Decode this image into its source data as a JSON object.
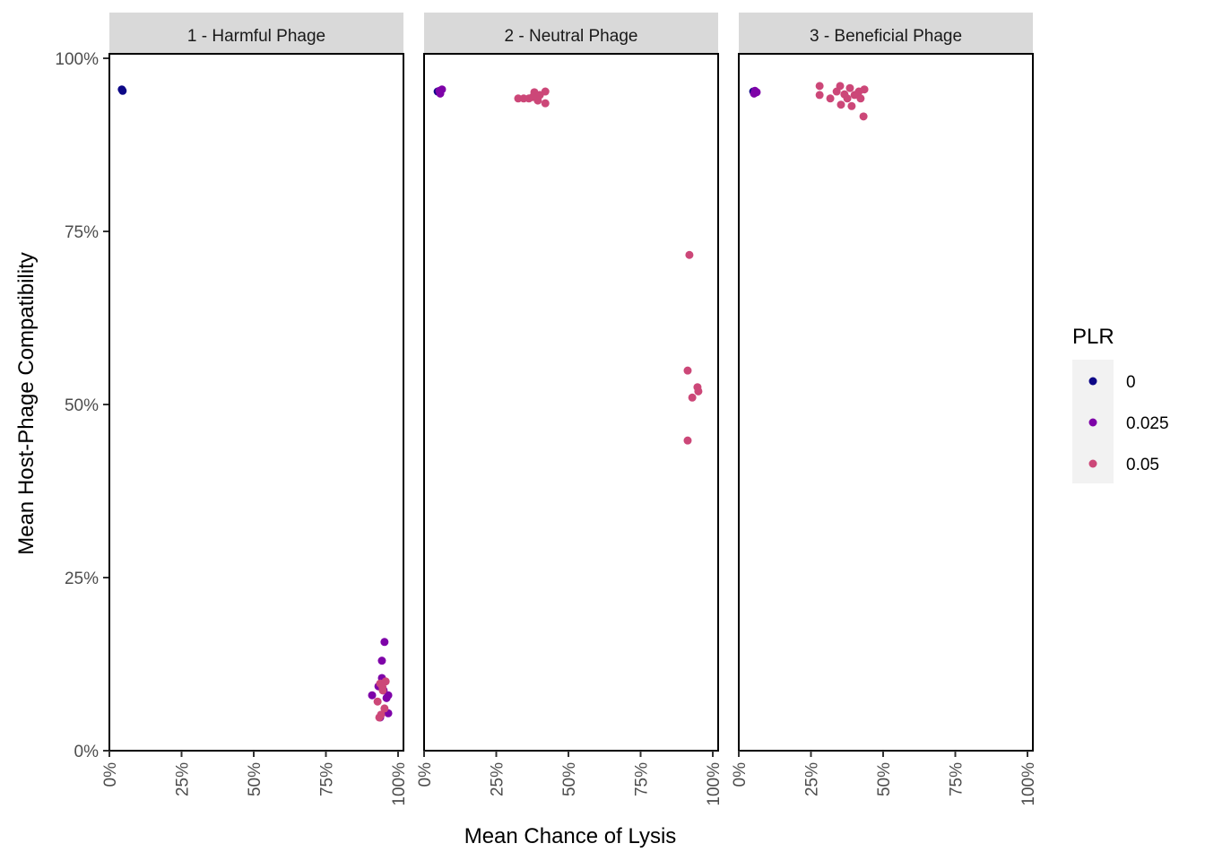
{
  "chart_data": {
    "type": "scatter",
    "title": "",
    "xlabel": "Mean Chance of Lysis",
    "ylabel": "Mean Host-Phage Compatibility",
    "xlim": [
      0,
      100
    ],
    "ylim": [
      0,
      100
    ],
    "x_ticks": [
      "0%",
      "25%",
      "50%",
      "75%",
      "100%"
    ],
    "y_ticks": [
      "0%",
      "25%",
      "50%",
      "75%",
      "100%"
    ],
    "x_tick_values": [
      0,
      25,
      50,
      75,
      100
    ],
    "y_tick_values": [
      0,
      25,
      50,
      75,
      100
    ],
    "grid": false,
    "legend": {
      "title": "PLR",
      "placement": "right",
      "entries": [
        {
          "label": "0",
          "color": "#0d0887"
        },
        {
          "label": "0.025",
          "color": "#7e03a8"
        },
        {
          "label": "0.05",
          "color": "#cc4778"
        }
      ]
    },
    "panels": [
      {
        "label": "1 - Harmful Phage",
        "series": [
          {
            "name": "0",
            "points": [
              [
                4.3,
                95.5
              ],
              [
                4.6,
                95.3
              ]
            ]
          },
          {
            "name": "0.025",
            "points": [
              [
                95.3,
                15.7
              ],
              [
                94.4,
                13.0
              ],
              [
                94.4,
                10.5
              ],
              [
                91.0,
                8.0
              ],
              [
                96.6,
                8.0
              ],
              [
                93.2,
                9.3
              ],
              [
                96.6,
                5.4
              ],
              [
                93.8,
                4.8
              ],
              [
                95.0,
                8.7
              ],
              [
                96.0,
                7.6
              ]
            ]
          },
          {
            "name": "0.05",
            "points": [
              [
                93.8,
                9.7
              ],
              [
                95.7,
                10.0
              ],
              [
                94.7,
                8.7
              ],
              [
                92.9,
                7.1
              ],
              [
                94.1,
                5.2
              ],
              [
                95.3,
                6.1
              ],
              [
                93.5,
                4.8
              ],
              [
                94.6,
                9.2
              ]
            ]
          }
        ]
      },
      {
        "label": "2 - Neutral Phage",
        "series": [
          {
            "name": "0",
            "points": [
              [
                4.7,
                95.2
              ]
            ]
          },
          {
            "name": "0.025",
            "points": [
              [
                5.3,
                95.3
              ],
              [
                6.2,
                95.5
              ],
              [
                5.6,
                94.9
              ]
            ]
          },
          {
            "name": "0.05",
            "points": [
              [
                32.6,
                94.2
              ],
              [
                34.5,
                94.2
              ],
              [
                36.3,
                94.2
              ],
              [
                38.2,
                95.1
              ],
              [
                40.1,
                94.7
              ],
              [
                42.0,
                95.2
              ],
              [
                42.0,
                93.5
              ],
              [
                39.4,
                93.9
              ],
              [
                37.6,
                94.4
              ],
              [
                91.9,
                71.6
              ],
              [
                91.3,
                54.9
              ],
              [
                94.7,
                52.5
              ],
              [
                95.0,
                51.9
              ],
              [
                92.9,
                51.0
              ],
              [
                91.3,
                44.8
              ]
            ]
          }
        ]
      },
      {
        "label": "3 - Beneficial Phage",
        "series": [
          {
            "name": "0",
            "points": [
              [
                5.0,
                95.2
              ]
            ]
          },
          {
            "name": "0.025",
            "points": [
              [
                5.6,
                95.3
              ],
              [
                6.2,
                95.1
              ],
              [
                5.3,
                94.9
              ]
            ]
          },
          {
            "name": "0.05",
            "points": [
              [
                28.0,
                96.0
              ],
              [
                28.0,
                94.7
              ],
              [
                31.7,
                94.2
              ],
              [
                35.1,
                96.0
              ],
              [
                33.9,
                95.2
              ],
              [
                36.6,
                94.8
              ],
              [
                38.5,
                95.7
              ],
              [
                40.1,
                94.7
              ],
              [
                37.6,
                94.2
              ],
              [
                35.4,
                93.3
              ],
              [
                39.1,
                93.1
              ],
              [
                41.6,
                95.2
              ],
              [
                43.5,
                95.5
              ],
              [
                42.2,
                94.2
              ],
              [
                43.2,
                91.6
              ]
            ]
          }
        ]
      }
    ]
  }
}
